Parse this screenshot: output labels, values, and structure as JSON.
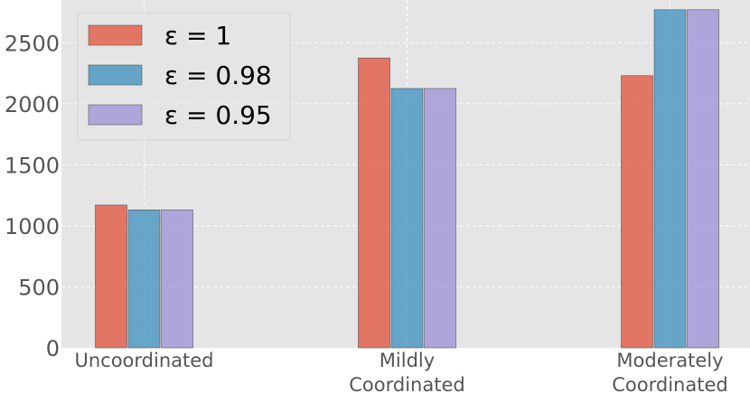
{
  "chart_data": {
    "type": "bar",
    "title": "",
    "xlabel": "",
    "ylabel": "",
    "categories": [
      [
        "Uncoordinated"
      ],
      [
        "Mildly",
        "Coordinated"
      ],
      [
        "Moderately",
        "Coordinated"
      ]
    ],
    "series": [
      {
        "name": "ε = 1",
        "color": "#E24A33",
        "values": [
          1170,
          2375,
          2230
        ]
      },
      {
        "name": "ε = 0.98",
        "color": "#348ABD",
        "values": [
          1130,
          2125,
          2770
        ]
      },
      {
        "name": "ε = 0.95",
        "color": "#988ED5",
        "values": [
          1130,
          2125,
          2770
        ]
      }
    ],
    "ylim": [
      0,
      2850
    ],
    "yticks": [
      "0",
      "500",
      "1000",
      "1500",
      "2000",
      "2500"
    ],
    "grid": true,
    "legend_position": "top-left",
    "background": "#E5E5E5"
  }
}
